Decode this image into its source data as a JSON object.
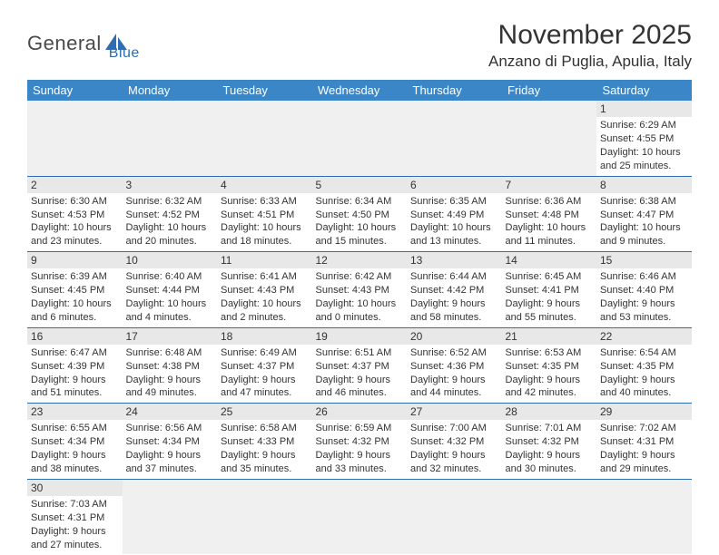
{
  "logo": {
    "part1": "General",
    "part2": "Blue"
  },
  "title": "November 2025",
  "location": "Anzano di Puglia, Apulia, Italy",
  "colors": {
    "header_bg": "#3b86c6",
    "header_text": "#ffffff",
    "daynum_bg": "#e8e8e8",
    "row_border": "#2d6db0",
    "logo_blue": "#2d6db0"
  },
  "day_headers": [
    "Sunday",
    "Monday",
    "Tuesday",
    "Wednesday",
    "Thursday",
    "Friday",
    "Saturday"
  ],
  "weeks": [
    [
      null,
      null,
      null,
      null,
      null,
      null,
      {
        "n": "1",
        "sr": "6:29 AM",
        "ss": "4:55 PM",
        "dl": "10 hours and 25 minutes."
      }
    ],
    [
      {
        "n": "2",
        "sr": "6:30 AM",
        "ss": "4:53 PM",
        "dl": "10 hours and 23 minutes."
      },
      {
        "n": "3",
        "sr": "6:32 AM",
        "ss": "4:52 PM",
        "dl": "10 hours and 20 minutes."
      },
      {
        "n": "4",
        "sr": "6:33 AM",
        "ss": "4:51 PM",
        "dl": "10 hours and 18 minutes."
      },
      {
        "n": "5",
        "sr": "6:34 AM",
        "ss": "4:50 PM",
        "dl": "10 hours and 15 minutes."
      },
      {
        "n": "6",
        "sr": "6:35 AM",
        "ss": "4:49 PM",
        "dl": "10 hours and 13 minutes."
      },
      {
        "n": "7",
        "sr": "6:36 AM",
        "ss": "4:48 PM",
        "dl": "10 hours and 11 minutes."
      },
      {
        "n": "8",
        "sr": "6:38 AM",
        "ss": "4:47 PM",
        "dl": "10 hours and 9 minutes."
      }
    ],
    [
      {
        "n": "9",
        "sr": "6:39 AM",
        "ss": "4:45 PM",
        "dl": "10 hours and 6 minutes."
      },
      {
        "n": "10",
        "sr": "6:40 AM",
        "ss": "4:44 PM",
        "dl": "10 hours and 4 minutes."
      },
      {
        "n": "11",
        "sr": "6:41 AM",
        "ss": "4:43 PM",
        "dl": "10 hours and 2 minutes."
      },
      {
        "n": "12",
        "sr": "6:42 AM",
        "ss": "4:43 PM",
        "dl": "10 hours and 0 minutes."
      },
      {
        "n": "13",
        "sr": "6:44 AM",
        "ss": "4:42 PM",
        "dl": "9 hours and 58 minutes."
      },
      {
        "n": "14",
        "sr": "6:45 AM",
        "ss": "4:41 PM",
        "dl": "9 hours and 55 minutes."
      },
      {
        "n": "15",
        "sr": "6:46 AM",
        "ss": "4:40 PM",
        "dl": "9 hours and 53 minutes."
      }
    ],
    [
      {
        "n": "16",
        "sr": "6:47 AM",
        "ss": "4:39 PM",
        "dl": "9 hours and 51 minutes."
      },
      {
        "n": "17",
        "sr": "6:48 AM",
        "ss": "4:38 PM",
        "dl": "9 hours and 49 minutes."
      },
      {
        "n": "18",
        "sr": "6:49 AM",
        "ss": "4:37 PM",
        "dl": "9 hours and 47 minutes."
      },
      {
        "n": "19",
        "sr": "6:51 AM",
        "ss": "4:37 PM",
        "dl": "9 hours and 46 minutes."
      },
      {
        "n": "20",
        "sr": "6:52 AM",
        "ss": "4:36 PM",
        "dl": "9 hours and 44 minutes."
      },
      {
        "n": "21",
        "sr": "6:53 AM",
        "ss": "4:35 PM",
        "dl": "9 hours and 42 minutes."
      },
      {
        "n": "22",
        "sr": "6:54 AM",
        "ss": "4:35 PM",
        "dl": "9 hours and 40 minutes."
      }
    ],
    [
      {
        "n": "23",
        "sr": "6:55 AM",
        "ss": "4:34 PM",
        "dl": "9 hours and 38 minutes."
      },
      {
        "n": "24",
        "sr": "6:56 AM",
        "ss": "4:34 PM",
        "dl": "9 hours and 37 minutes."
      },
      {
        "n": "25",
        "sr": "6:58 AM",
        "ss": "4:33 PM",
        "dl": "9 hours and 35 minutes."
      },
      {
        "n": "26",
        "sr": "6:59 AM",
        "ss": "4:32 PM",
        "dl": "9 hours and 33 minutes."
      },
      {
        "n": "27",
        "sr": "7:00 AM",
        "ss": "4:32 PM",
        "dl": "9 hours and 32 minutes."
      },
      {
        "n": "28",
        "sr": "7:01 AM",
        "ss": "4:32 PM",
        "dl": "9 hours and 30 minutes."
      },
      {
        "n": "29",
        "sr": "7:02 AM",
        "ss": "4:31 PM",
        "dl": "9 hours and 29 minutes."
      }
    ],
    [
      {
        "n": "30",
        "sr": "7:03 AM",
        "ss": "4:31 PM",
        "dl": "9 hours and 27 minutes."
      },
      null,
      null,
      null,
      null,
      null,
      null
    ]
  ]
}
